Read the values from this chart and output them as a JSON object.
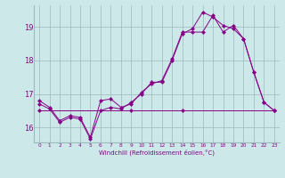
{
  "xlabel": "Windchill (Refroidissement éolien,°C)",
  "background_color": "#cce8e8",
  "line_color": "#880088",
  "grid_color": "#99bbbb",
  "text_color": "#880088",
  "x_min": -0.5,
  "x_max": 23.5,
  "y_min": 15.55,
  "y_max": 19.65,
  "yticks": [
    16,
    17,
    18,
    19
  ],
  "xticks": [
    0,
    1,
    2,
    3,
    4,
    5,
    6,
    7,
    8,
    9,
    10,
    11,
    12,
    13,
    14,
    15,
    16,
    17,
    18,
    19,
    20,
    21,
    22,
    23
  ],
  "line1_x": [
    0,
    1,
    2,
    3,
    4,
    5,
    6,
    7,
    8,
    9,
    10,
    11,
    12,
    13,
    14,
    15,
    16,
    17,
    18,
    19,
    20,
    21,
    22,
    23
  ],
  "line1_y": [
    16.8,
    16.6,
    16.2,
    16.35,
    16.3,
    15.7,
    16.8,
    16.85,
    16.6,
    16.7,
    17.05,
    17.3,
    17.4,
    18.05,
    18.85,
    18.85,
    18.85,
    19.35,
    18.85,
    19.05,
    18.65,
    17.65,
    16.75,
    16.5
  ],
  "line2_x": [
    0,
    1,
    2,
    3,
    4,
    5,
    6,
    7,
    8,
    9,
    10,
    11,
    12,
    13,
    14,
    15,
    16,
    17,
    18,
    19,
    20,
    21,
    22,
    23
  ],
  "line2_y": [
    16.7,
    16.55,
    16.15,
    16.3,
    16.25,
    15.65,
    16.5,
    16.6,
    16.55,
    16.75,
    17.0,
    17.35,
    17.35,
    18.0,
    18.8,
    18.95,
    19.45,
    19.3,
    19.05,
    18.95,
    18.65,
    17.65,
    16.75,
    16.5
  ],
  "line3_x": [
    0,
    9,
    14,
    23
  ],
  "line3_y": [
    16.5,
    16.5,
    16.5,
    16.5
  ],
  "line3_full_x": [
    0,
    1,
    2,
    3,
    4,
    5,
    6,
    7,
    8,
    9,
    10,
    11,
    12,
    13,
    14,
    15,
    16,
    17,
    18,
    19,
    20,
    21,
    22,
    23
  ],
  "line3_full_y": [
    16.5,
    16.5,
    16.5,
    16.5,
    16.5,
    16.5,
    16.5,
    16.5,
    16.5,
    16.5,
    16.5,
    16.5,
    16.5,
    16.5,
    16.5,
    16.5,
    16.5,
    16.5,
    16.5,
    16.5,
    16.5,
    16.5,
    16.5,
    16.5
  ]
}
